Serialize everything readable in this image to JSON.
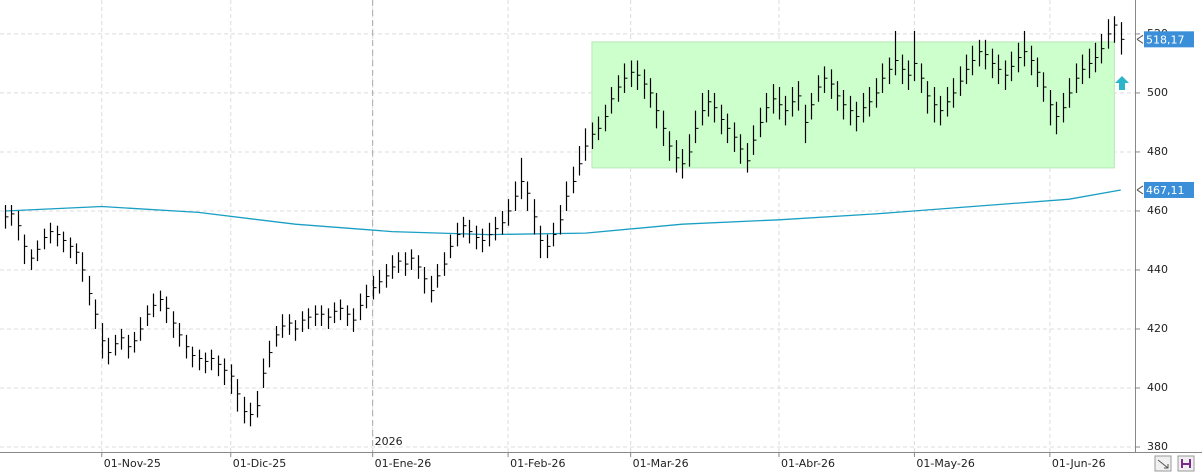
{
  "chart_data": {
    "type": "ohlc",
    "categories": [
      null,
      null,
      null,
      null,
      null,
      null,
      null,
      null,
      null,
      null,
      null,
      null,
      null,
      null,
      null,
      "01-Nov-25",
      null,
      null,
      null,
      null,
      null,
      null,
      null,
      null,
      null,
      null,
      null,
      null,
      null,
      null,
      null,
      null,
      null,
      null,
      null,
      "01-Dic-25",
      null,
      null,
      null,
      null,
      null,
      null,
      null,
      null,
      null,
      null,
      null,
      null,
      null,
      null,
      null,
      null,
      null,
      null,
      null,
      null,
      null,
      "01-Ene-26",
      null,
      null,
      null,
      null,
      null,
      null,
      null,
      null,
      null,
      null,
      null,
      null,
      null,
      null,
      null,
      null,
      null,
      null,
      null,
      null,
      "01-Feb-26",
      null,
      null,
      null,
      null,
      null,
      null,
      null,
      null,
      null,
      null,
      null,
      null,
      null,
      null,
      null,
      null,
      null,
      null,
      "01-Mar-26",
      null,
      null,
      null,
      null,
      null,
      null,
      null,
      null,
      null,
      null,
      null,
      null,
      null,
      null,
      null,
      null,
      null,
      null,
      null,
      null,
      null,
      null,
      "01-Abr-26",
      null,
      null,
      null,
      null,
      null,
      null,
      null,
      null,
      null,
      null,
      null,
      null,
      null,
      null,
      null,
      null,
      null,
      null,
      null,
      null,
      "01-May-26",
      null,
      null,
      null,
      null,
      null,
      null,
      null,
      null,
      null,
      null,
      null,
      null,
      null,
      null,
      null,
      null,
      null,
      null,
      null,
      null,
      "01-Jun-26",
      null,
      null,
      null,
      null,
      null,
      null,
      null,
      null,
      null,
      null,
      null
    ],
    "high": [
      462,
      462,
      460,
      452,
      447,
      450,
      454,
      456,
      455,
      453,
      451,
      449,
      446,
      438,
      430,
      422,
      417,
      418,
      420,
      418,
      419,
      424,
      428,
      432,
      433,
      431,
      426,
      422,
      418,
      414,
      413,
      412,
      413,
      411,
      410,
      408,
      403,
      397,
      395,
      399,
      410,
      416,
      421,
      425,
      425,
      423,
      426,
      427,
      428,
      428,
      427,
      429,
      430,
      428,
      427,
      432,
      435,
      438,
      440,
      442,
      445,
      446,
      446,
      447,
      445,
      441,
      438,
      442,
      446,
      452,
      456,
      458,
      457,
      455,
      454,
      456,
      458,
      460,
      464,
      470,
      478,
      470,
      464,
      455,
      452,
      456,
      462,
      470,
      475,
      482,
      488,
      490,
      492,
      496,
      502,
      506,
      510,
      511,
      511,
      508,
      505,
      500,
      494,
      487,
      484,
      481,
      486,
      494,
      500,
      501,
      500,
      496,
      493,
      490,
      486,
      483,
      489,
      495,
      500,
      503,
      502,
      499,
      502,
      504,
      496,
      500,
      506,
      509,
      508,
      504,
      501,
      499,
      497,
      500,
      502,
      505,
      510,
      512,
      521,
      513,
      511,
      521,
      510,
      504,
      502,
      499,
      502,
      505,
      509,
      513,
      516,
      518,
      518,
      515,
      513,
      511,
      514,
      517,
      521,
      516,
      512,
      507,
      501,
      497,
      500,
      505,
      510,
      513,
      515,
      517,
      520,
      525,
      526,
      524
    ],
    "low": [
      454,
      455,
      450,
      442,
      440,
      443,
      447,
      449,
      448,
      446,
      444,
      442,
      436,
      428,
      420,
      410,
      408,
      411,
      413,
      410,
      412,
      416,
      421,
      424,
      426,
      422,
      417,
      414,
      410,
      407,
      406,
      405,
      406,
      404,
      401,
      398,
      392,
      388,
      387,
      390,
      400,
      407,
      414,
      417,
      418,
      416,
      419,
      420,
      421,
      421,
      420,
      422,
      423,
      421,
      419,
      423,
      427,
      430,
      432,
      434,
      437,
      439,
      438,
      440,
      437,
      432,
      429,
      434,
      438,
      444,
      448,
      451,
      449,
      447,
      446,
      448,
      450,
      452,
      455,
      460,
      464,
      460,
      452,
      444,
      444,
      448,
      452,
      460,
      466,
      472,
      477,
      481,
      484,
      487,
      493,
      497,
      500,
      502,
      501,
      498,
      495,
      488,
      482,
      477,
      473,
      471,
      475,
      483,
      489,
      492,
      490,
      486,
      483,
      480,
      476,
      473,
      479,
      485,
      490,
      493,
      491,
      489,
      492,
      494,
      483,
      491,
      497,
      500,
      498,
      494,
      491,
      489,
      487,
      490,
      492,
      495,
      500,
      503,
      506,
      503,
      501,
      504,
      500,
      493,
      490,
      489,
      492,
      495,
      499,
      503,
      506,
      509,
      508,
      505,
      503,
      501,
      504,
      507,
      509,
      506,
      502,
      497,
      489,
      486,
      490,
      495,
      500,
      503,
      505,
      507,
      510,
      515,
      517,
      513
    ],
    "close": [
      458,
      459,
      455,
      448,
      444,
      447,
      451,
      453,
      452,
      450,
      448,
      446,
      440,
      432,
      425,
      416,
      412,
      415,
      417,
      414,
      416,
      420,
      425,
      428,
      430,
      427,
      422,
      418,
      414,
      411,
      410,
      409,
      410,
      408,
      406,
      404,
      398,
      392,
      391,
      394,
      405,
      412,
      418,
      421,
      422,
      420,
      423,
      424,
      425,
      425,
      424,
      426,
      427,
      425,
      423,
      428,
      431,
      434,
      436,
      438,
      441,
      443,
      442,
      444,
      441,
      437,
      433,
      438,
      442,
      448,
      452,
      455,
      453,
      451,
      450,
      452,
      454,
      456,
      460,
      465,
      470,
      466,
      458,
      450,
      448,
      452,
      457,
      465,
      470,
      476,
      482,
      486,
      488,
      492,
      498,
      502,
      505,
      507,
      506,
      503,
      500,
      494,
      488,
      482,
      478,
      476,
      480,
      488,
      494,
      497,
      495,
      491,
      488,
      485,
      481,
      477,
      484,
      490,
      495,
      498,
      496,
      494,
      497,
      499,
      490,
      496,
      502,
      505,
      503,
      499,
      496,
      494,
      492,
      495,
      497,
      500,
      505,
      508,
      511,
      508,
      506,
      510,
      505,
      499,
      496,
      494,
      497,
      500,
      504,
      508,
      511,
      514,
      513,
      510,
      508,
      506,
      509,
      512,
      514,
      511,
      507,
      502,
      496,
      492,
      495,
      500,
      505,
      508,
      510,
      512,
      515,
      520,
      523,
      518.17
    ],
    "color": "#000000",
    "moving_average": {
      "x": [
        0,
        15,
        30,
        45,
        60,
        75,
        90,
        105,
        120,
        135,
        150,
        165,
        173
      ],
      "values": [
        460,
        461.5,
        459.5,
        455.5,
        453,
        452,
        452.5,
        455.5,
        457,
        459,
        461.5,
        464,
        467.11
      ],
      "color": "#1a9fc4"
    },
    "range_box": {
      "x": [
        91,
        172
      ],
      "y": [
        474.6,
        517.3
      ],
      "color": "#ccffcc"
    },
    "price_tags": [
      {
        "value": 518.17,
        "label": "518,17"
      },
      {
        "value": 467.11,
        "label": "467,11"
      }
    ],
    "tag_color": "#3a8fd8",
    "annotations": [
      {
        "text": "2026",
        "x": 57
      }
    ],
    "xlim": [
      -0.78,
      175.2
    ],
    "ylim": [
      378.3,
      531.5
    ],
    "yticks": [
      380,
      400,
      420,
      440,
      460,
      480,
      500,
      520
    ],
    "grid": true
  }
}
